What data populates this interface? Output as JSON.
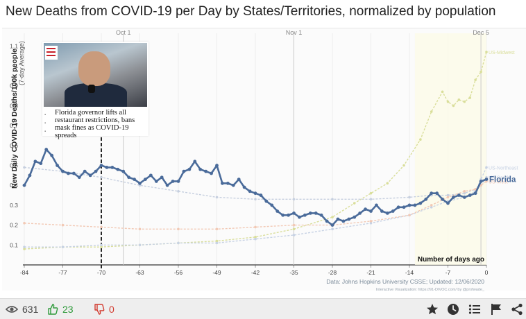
{
  "title": "New Deaths from COVID-19 per Day by States/Territories, normalized by population",
  "inset": {
    "caption": "Florida governor lifts all restaurant restrictions, bans mask fines as COVID-19 spreads"
  },
  "footer": {
    "views": "631",
    "likes": "23",
    "dislikes": "0"
  },
  "colors": {
    "florida": "#4a6b9a",
    "midwest": "#d9de9a",
    "northeast": "#c7d2e4",
    "south": "#c6cfdf",
    "west": "#f2c9b5",
    "like": "#2e9a3a",
    "dislike": "#d23a2e"
  },
  "chart_data": {
    "type": "line",
    "title": "New Deaths from COVID-19 per Day by States/Territories, normalized by population",
    "xlabel": "Number of days ago",
    "ylabel": "New Daily COVID-19 Deaths/100k people",
    "ylabel_sub": "(7-day Average)",
    "xlim": [
      -84,
      0
    ],
    "ylim": [
      0,
      1.15
    ],
    "xticks": [
      -84,
      -77,
      -70,
      -63,
      -56,
      -49,
      -42,
      -35,
      -28,
      -21,
      -14,
      -7,
      0
    ],
    "yticks": [
      0.1,
      0.2,
      0.3,
      0.4,
      0.5,
      0.6,
      0.7,
      0.8,
      0.9,
      1,
      1.1
    ],
    "date_markers": [
      {
        "label": "Oct 1",
        "x": -66
      },
      {
        "label": "Nov 1",
        "x": -35
      },
      {
        "label": "Dec 5",
        "x": -1
      }
    ],
    "event_marker_x": -70,
    "source": "Data: Johns Hopkins University CSSE; Updated: 12/06/2020",
    "credit": "Interactive Visualization: https://91-DIVOC.com/ by @profwade_",
    "series": [
      {
        "name": "Florida",
        "highlight": true,
        "x": [
          -84,
          -83,
          -82,
          -81,
          -80,
          -79,
          -78,
          -77,
          -76,
          -75,
          -74,
          -73,
          -72,
          -71,
          -70,
          -69,
          -68,
          -67,
          -66,
          -65,
          -64,
          -63,
          -62,
          -61,
          -60,
          -59,
          -58,
          -57,
          -56,
          -55,
          -54,
          -53,
          -52,
          -51,
          -50,
          -49,
          -48,
          -47,
          -46,
          -45,
          -44,
          -43,
          -42,
          -41,
          -40,
          -39,
          -38,
          -37,
          -36,
          -35,
          -34,
          -33,
          -32,
          -31,
          -30,
          -29,
          -28,
          -27,
          -26,
          -25,
          -24,
          -23,
          -22,
          -21,
          -20,
          -19,
          -18,
          -17,
          -16,
          -15,
          -14,
          -13,
          -12,
          -11,
          -10,
          -9,
          -8,
          -7,
          -6,
          -5,
          -4,
          -3,
          -2,
          -1,
          0
        ],
        "y": [
          0.4,
          0.45,
          0.52,
          0.51,
          0.58,
          0.55,
          0.5,
          0.47,
          0.46,
          0.46,
          0.44,
          0.47,
          0.45,
          0.47,
          0.5,
          0.49,
          0.49,
          0.48,
          0.47,
          0.44,
          0.43,
          0.41,
          0.43,
          0.45,
          0.42,
          0.44,
          0.4,
          0.42,
          0.42,
          0.47,
          0.48,
          0.52,
          0.48,
          0.47,
          0.46,
          0.5,
          0.41,
          0.41,
          0.4,
          0.43,
          0.39,
          0.37,
          0.36,
          0.35,
          0.32,
          0.3,
          0.27,
          0.25,
          0.25,
          0.26,
          0.24,
          0.25,
          0.26,
          0.26,
          0.25,
          0.22,
          0.2,
          0.23,
          0.22,
          0.23,
          0.24,
          0.26,
          0.28,
          0.27,
          0.3,
          0.27,
          0.26,
          0.27,
          0.29,
          0.29,
          0.3,
          0.3,
          0.31,
          0.33,
          0.36,
          0.36,
          0.33,
          0.31,
          0.34,
          0.35,
          0.34,
          0.35,
          0.36,
          0.42,
          0.43
        ]
      },
      {
        "name": "US-Midwest",
        "x": [
          -84,
          -77,
          -70,
          -63,
          -56,
          -49,
          -42,
          -35,
          -28,
          -24,
          -21,
          -18,
          -15,
          -12,
          -10,
          -8,
          -7,
          -6,
          -5,
          -4,
          -3,
          -2,
          -1,
          0
        ],
        "y": [
          0.08,
          0.09,
          0.09,
          0.1,
          0.11,
          0.12,
          0.14,
          0.18,
          0.24,
          0.31,
          0.36,
          0.41,
          0.5,
          0.63,
          0.77,
          0.87,
          0.82,
          0.8,
          0.83,
          0.82,
          0.84,
          0.93,
          0.97,
          1.07
        ]
      },
      {
        "name": "US-Northeast",
        "x": [
          -84,
          -77,
          -70,
          -63,
          -56,
          -49,
          -42,
          -35,
          -28,
          -21,
          -14,
          -10,
          -7,
          -4,
          -2,
          -1,
          0
        ],
        "y": [
          0.09,
          0.09,
          0.1,
          0.1,
          0.11,
          0.11,
          0.13,
          0.15,
          0.18,
          0.21,
          0.25,
          0.29,
          0.32,
          0.34,
          0.37,
          0.43,
          0.49
        ]
      },
      {
        "name": "US-South",
        "x": [
          -84,
          -77,
          -70,
          -63,
          -56,
          -49,
          -42,
          -35,
          -28,
          -21,
          -14,
          -10,
          -7,
          -4,
          -2,
          -1,
          0
        ],
        "y": [
          0.49,
          0.47,
          0.44,
          0.4,
          0.37,
          0.34,
          0.33,
          0.33,
          0.33,
          0.33,
          0.34,
          0.35,
          0.35,
          0.36,
          0.38,
          0.4,
          0.44
        ]
      },
      {
        "name": "US-West",
        "x": [
          -84,
          -77,
          -70,
          -63,
          -56,
          -49,
          -42,
          -35,
          -28,
          -21,
          -14,
          -10,
          -7,
          -4,
          -2,
          -1,
          0
        ],
        "y": [
          0.21,
          0.2,
          0.19,
          0.18,
          0.18,
          0.18,
          0.19,
          0.2,
          0.2,
          0.22,
          0.25,
          0.3,
          0.34,
          0.37,
          0.38,
          0.4,
          0.42
        ]
      }
    ]
  }
}
